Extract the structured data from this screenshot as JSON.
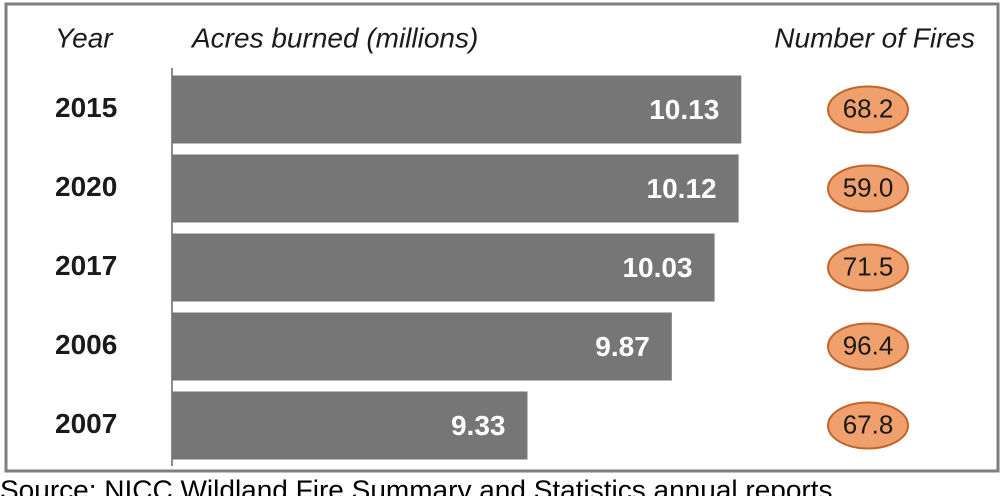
{
  "chart_data": {
    "type": "bar",
    "orientation": "horizontal",
    "header": [
      "Year",
      "Acres burned (millions)",
      "Number of Fires"
    ],
    "categories": [
      "2015",
      "2020",
      "2017",
      "2006",
      "2007"
    ],
    "values": [
      10.13,
      10.12,
      10.03,
      9.87,
      9.33
    ],
    "color": "#767676",
    "xlim": [
      8,
      10.2
    ],
    "fires": {
      "values": [
        68.2,
        59,
        71.5,
        96.4,
        67.8
      ],
      "value_labels": [
        "68.2",
        "59.0",
        "71.5",
        "96.4",
        "67.8"
      ],
      "color": "#f0a06c"
    },
    "source": "Source: NICC Wildland Fire Summary and Statistics annual reports"
  }
}
